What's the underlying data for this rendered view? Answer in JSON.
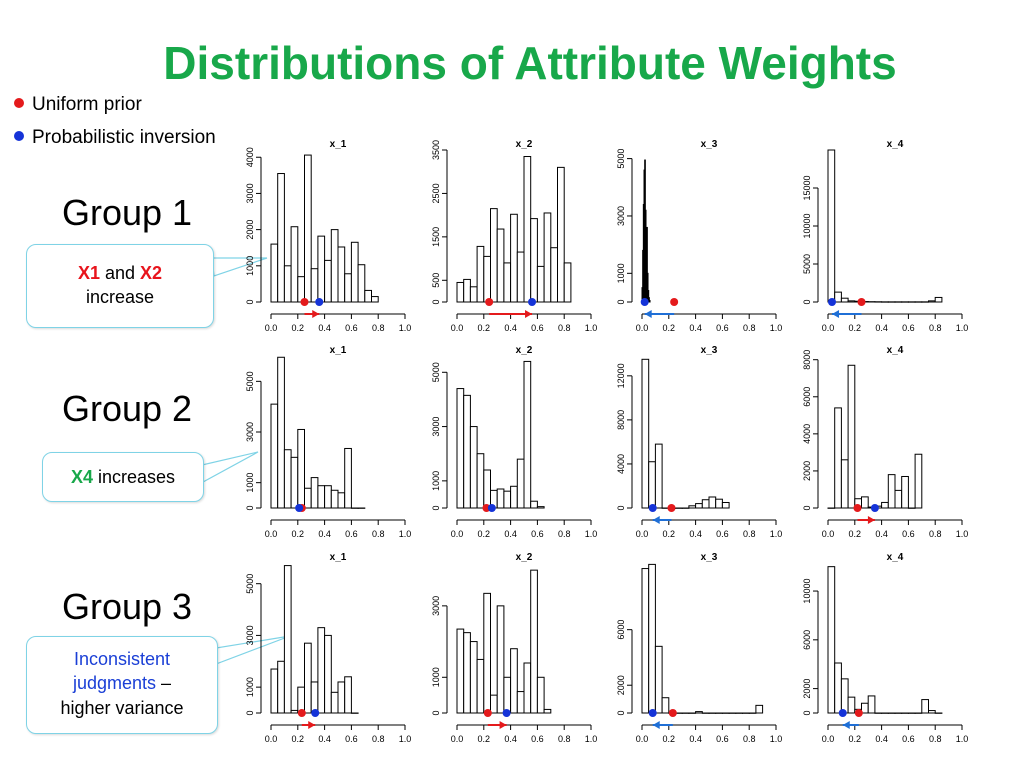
{
  "title": "Distributions of Attribute Weights",
  "legend": [
    {
      "label": "Uniform prior",
      "color": "#e41a1c"
    },
    {
      "label": "Probabilistic inversion",
      "color": "#1533d8"
    }
  ],
  "groups": [
    {
      "label": "Group 1",
      "callout_parts": [
        "X1",
        " and ",
        "X2",
        "increase"
      ]
    },
    {
      "label": "Group 2",
      "callout_parts": [
        "X4",
        " increases"
      ]
    },
    {
      "label": "Group 3",
      "callout_parts": [
        "Inconsistent judgments",
        " –",
        "higher variance"
      ]
    }
  ],
  "colors": {
    "title": "#18a84a",
    "uniform_dot": "#e41a1c",
    "inversion_dot": "#1533d8",
    "arrow_increase": "#e41a1c",
    "arrow_decrease": "#1f6fd6",
    "callout_border": "#7fd3e6"
  },
  "chart_data": [
    {
      "type": "bar",
      "title": "x_1",
      "group": "Group 1",
      "bin_width": 0.05,
      "bins_start": 0.0,
      "values": [
        1600,
        3550,
        1000,
        2080,
        700,
        4060,
        920,
        1820,
        1150,
        2000,
        1520,
        780,
        1650,
        1030,
        320,
        150
      ],
      "xlim": [
        0,
        1
      ],
      "ylim": [
        0,
        4200
      ],
      "yticks": [
        0,
        1000,
        2000,
        3000,
        4000
      ],
      "xticks": [
        0.0,
        0.2,
        0.4,
        0.6,
        0.8,
        1.0
      ],
      "uniform_prior": 0.25,
      "probabilistic_inversion": 0.36,
      "shift": "increase"
    },
    {
      "type": "bar",
      "title": "x_2",
      "group": "Group 1",
      "bin_width": 0.05,
      "bins_start": 0.0,
      "values": [
        450,
        520,
        350,
        1280,
        1050,
        2150,
        1680,
        900,
        2020,
        1150,
        3350,
        1920,
        820,
        2050,
        1250,
        3100,
        900
      ],
      "xlim": [
        0,
        1
      ],
      "ylim": [
        0,
        3500
      ],
      "yticks": [
        0,
        500,
        1500,
        2500,
        3500
      ],
      "xticks": [
        0.0,
        0.2,
        0.4,
        0.6,
        0.8,
        1.0
      ],
      "uniform_prior": 0.24,
      "probabilistic_inversion": 0.56,
      "shift": "increase"
    },
    {
      "type": "bar",
      "title": "x_3",
      "group": "Group 1",
      "bin_width": 0.005,
      "bins_start": 0.0,
      "values": [
        500,
        1800,
        3400,
        4600,
        4950,
        3200,
        2000,
        2600,
        1000,
        400,
        150,
        50
      ],
      "xlim": [
        0,
        1
      ],
      "ylim": [
        0,
        5300
      ],
      "yticks": [
        0,
        1000,
        3000,
        5000
      ],
      "xticks": [
        0.0,
        0.2,
        0.4,
        0.6,
        0.8,
        1.0
      ],
      "uniform_prior": 0.24,
      "probabilistic_inversion": 0.02,
      "shift": "decrease"
    },
    {
      "type": "bar",
      "title": "x_4",
      "group": "Group 1",
      "bin_width": 0.05,
      "bins_start": 0.0,
      "values": [
        20000,
        1300,
        500,
        150,
        100,
        60,
        40,
        30,
        20,
        20,
        20,
        20,
        20,
        20,
        20,
        150,
        600
      ],
      "xlim": [
        0,
        1
      ],
      "ylim": [
        0,
        20000
      ],
      "yticks": [
        0,
        5000,
        10000,
        15000
      ],
      "xticks": [
        0.0,
        0.2,
        0.4,
        0.6,
        0.8,
        1.0
      ],
      "uniform_prior": 0.25,
      "probabilistic_inversion": 0.03,
      "shift": "decrease"
    },
    {
      "type": "bar",
      "title": "x_1",
      "group": "Group 2",
      "bin_width": 0.05,
      "bins_start": 0.0,
      "values": [
        4100,
        5950,
        2300,
        2000,
        3100,
        780,
        1200,
        880,
        880,
        700,
        600,
        2350,
        0,
        0
      ],
      "xlim": [
        0,
        1
      ],
      "ylim": [
        0,
        6000
      ],
      "yticks": [
        0,
        1000,
        3000,
        5000
      ],
      "xticks": [
        0.0,
        0.2,
        0.4,
        0.6,
        0.8,
        1.0
      ],
      "uniform_prior": 0.23,
      "probabilistic_inversion": 0.21,
      "shift": "none"
    },
    {
      "type": "bar",
      "title": "x_2",
      "group": "Group 2",
      "bin_width": 0.05,
      "bins_start": 0.0,
      "values": [
        4400,
        4150,
        3000,
        2000,
        1400,
        650,
        700,
        620,
        800,
        1800,
        5400,
        250,
        50
      ],
      "xlim": [
        0,
        1
      ],
      "ylim": [
        0,
        5600
      ],
      "yticks": [
        0,
        1000,
        3000,
        5000
      ],
      "xticks": [
        0.0,
        0.2,
        0.4,
        0.6,
        0.8,
        1.0
      ],
      "uniform_prior": 0.22,
      "probabilistic_inversion": 0.26,
      "shift": "none"
    },
    {
      "type": "bar",
      "title": "x_3",
      "group": "Group 2",
      "bin_width": 0.05,
      "bins_start": 0.0,
      "values": [
        13500,
        4200,
        5800,
        0,
        0,
        0,
        0,
        200,
        400,
        750,
        1000,
        800,
        500
      ],
      "xlim": [
        0,
        1
      ],
      "ylim": [
        0,
        13800
      ],
      "yticks": [
        0,
        4000,
        8000,
        12000
      ],
      "xticks": [
        0.0,
        0.2,
        0.4,
        0.6,
        0.8,
        1.0
      ],
      "uniform_prior": 0.22,
      "probabilistic_inversion": 0.08,
      "shift": "decrease"
    },
    {
      "type": "bar",
      "title": "x_4",
      "group": "Group 2",
      "bin_width": 0.05,
      "bins_start": 0.0,
      "values": [
        0,
        5400,
        2600,
        7700,
        500,
        600,
        50,
        100,
        300,
        1800,
        950,
        1700,
        0,
        2900
      ],
      "xlim": [
        0,
        1
      ],
      "ylim": [
        0,
        8200
      ],
      "yticks": [
        0,
        2000,
        4000,
        6000,
        8000
      ],
      "xticks": [
        0.0,
        0.2,
        0.4,
        0.6,
        0.8,
        1.0
      ],
      "uniform_prior": 0.22,
      "probabilistic_inversion": 0.35,
      "shift": "increase"
    },
    {
      "type": "bar",
      "title": "x_1",
      "group": "Group 3",
      "bin_width": 0.05,
      "bins_start": 0.0,
      "values": [
        1700,
        2000,
        5700,
        100,
        1000,
        2700,
        1200,
        3300,
        3000,
        800,
        1200,
        1400,
        0
      ],
      "xlim": [
        0,
        1
      ],
      "ylim": [
        0,
        5800
      ],
      "yticks": [
        0,
        1000,
        3000,
        5000
      ],
      "xticks": [
        0.0,
        0.2,
        0.4,
        0.6,
        0.8,
        1.0
      ],
      "uniform_prior": 0.23,
      "probabilistic_inversion": 0.33,
      "shift": "increase"
    },
    {
      "type": "bar",
      "title": "x_2",
      "group": "Group 3",
      "bin_width": 0.05,
      "bins_start": 0.0,
      "values": [
        2350,
        2250,
        2000,
        1500,
        3350,
        500,
        3000,
        1000,
        1800,
        600,
        1400,
        4000,
        1000,
        100
      ],
      "xlim": [
        0,
        1
      ],
      "ylim": [
        0,
        4200
      ],
      "yticks": [
        0,
        1000,
        3000
      ],
      "xticks": [
        0.0,
        0.2,
        0.4,
        0.6,
        0.8,
        1.0
      ],
      "uniform_prior": 0.23,
      "probabilistic_inversion": 0.37,
      "shift": "increase"
    },
    {
      "type": "bar",
      "title": "x_3",
      "group": "Group 3",
      "bin_width": 0.05,
      "bins_start": 0.0,
      "values": [
        10400,
        10700,
        4800,
        1100,
        0,
        0,
        0,
        0,
        100,
        0,
        0,
        0,
        0,
        0,
        0,
        0,
        0,
        550
      ],
      "xlim": [
        0,
        1
      ],
      "ylim": [
        0,
        10800
      ],
      "yticks": [
        0,
        2000,
        6000
      ],
      "xticks": [
        0.0,
        0.2,
        0.4,
        0.6,
        0.8,
        1.0
      ],
      "uniform_prior": 0.23,
      "probabilistic_inversion": 0.08,
      "shift": "decrease"
    },
    {
      "type": "bar",
      "title": "x_4",
      "group": "Group 3",
      "bin_width": 0.05,
      "bins_start": 0.0,
      "values": [
        12000,
        4100,
        2800,
        1300,
        300,
        800,
        1400,
        0,
        0,
        0,
        0,
        0,
        0,
        0,
        1100,
        200,
        0
      ],
      "xlim": [
        0,
        1
      ],
      "ylim": [
        0,
        12300
      ],
      "yticks": [
        0,
        2000,
        6000,
        10000
      ],
      "xticks": [
        0.0,
        0.2,
        0.4,
        0.6,
        0.8,
        1.0
      ],
      "uniform_prior": 0.23,
      "probabilistic_inversion": 0.11,
      "shift": "decrease"
    }
  ]
}
